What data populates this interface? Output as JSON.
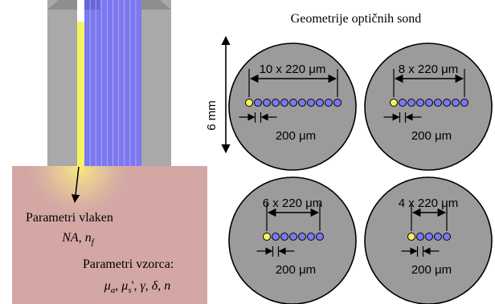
{
  "colors": {
    "sample": "#d4a7a5",
    "probe_gray": "#a9a9a9",
    "fiber_blue": "#7b78f0",
    "source_fiber": "#f5f562",
    "disk_gray": "#9b9b9b",
    "outline": "#000000"
  },
  "left": {
    "fiber_params_label": "Parametri vlaken",
    "fiber_params": {
      "na": "NA",
      "sep": ", ",
      "n": "n",
      "n_sub": "f"
    },
    "sample_params_label": "Parametri vzorca:",
    "sample_params": {
      "mu": "μ",
      "a_sub": "a",
      "sep1": ", ",
      "s_sub": "s",
      "prime_sep": "', ",
      "gamma": "γ",
      "sep2": ", ",
      "delta": "δ",
      "sep3": ", ",
      "n": "n"
    }
  },
  "right": {
    "title": "Geometrije optičnih sond",
    "scale_label": "6 mm",
    "pitch_label": "200 μm",
    "probes": [
      {
        "span_label": "10 x 220 μm",
        "detectors": 10
      },
      {
        "span_label": "8 x 220 μm",
        "detectors": 8
      },
      {
        "span_label": "6 x 220 μm",
        "detectors": 6
      },
      {
        "span_label": "4 x 220 μm",
        "detectors": 4
      }
    ]
  }
}
